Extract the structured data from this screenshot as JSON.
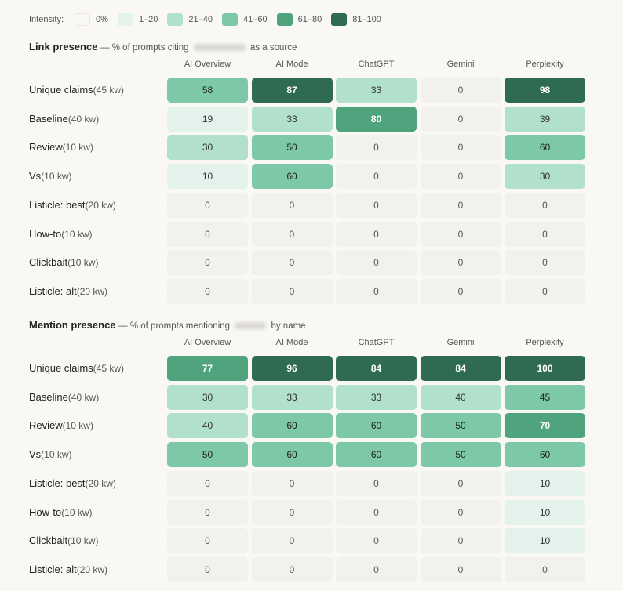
{
  "legend": {
    "title": "Intensity:",
    "items": [
      {
        "label": "0%",
        "color": "#f9f8f4"
      },
      {
        "label": "1–20",
        "color": "#e3f3ec"
      },
      {
        "label": "21–40",
        "color": "#b1e0cc"
      },
      {
        "label": "41–60",
        "color": "#7cc8a7"
      },
      {
        "label": "61–80",
        "color": "#4fa47d"
      },
      {
        "label": "81–100",
        "color": "#2f6b52"
      }
    ]
  },
  "chart_data": [
    {
      "type": "heatmap",
      "title": "Link presence",
      "subtitle_prefix": "— % of prompts citing",
      "subtitle_suffix": "as a source",
      "columns": [
        "AI Overview",
        "AI Mode",
        "ChatGPT",
        "Gemini",
        "Perplexity"
      ],
      "rows": [
        {
          "label": "Unique claims",
          "kw": "(45 kw)",
          "values": [
            58,
            87,
            33,
            0,
            98
          ]
        },
        {
          "label": "Baseline",
          "kw": "(40 kw)",
          "values": [
            19,
            33,
            80,
            0,
            39
          ]
        },
        {
          "label": "Review",
          "kw": "(10 kw)",
          "values": [
            30,
            50,
            0,
            0,
            60
          ]
        },
        {
          "label": "Vs",
          "kw": "(10 kw)",
          "values": [
            10,
            60,
            0,
            0,
            30
          ]
        },
        {
          "label": "Listicle: best",
          "kw": "(20 kw)",
          "values": [
            0,
            0,
            0,
            0,
            0
          ]
        },
        {
          "label": "How-to",
          "kw": "(10 kw)",
          "values": [
            0,
            0,
            0,
            0,
            0
          ]
        },
        {
          "label": "Clickbait",
          "kw": "(10 kw)",
          "values": [
            0,
            0,
            0,
            0,
            0
          ]
        },
        {
          "label": "Listicle: alt",
          "kw": "(20 kw)",
          "values": [
            0,
            0,
            0,
            0,
            0
          ]
        }
      ]
    },
    {
      "type": "heatmap",
      "title": "Mention presence",
      "subtitle_prefix": "— % of prompts mentioning",
      "subtitle_suffix": "by name",
      "columns": [
        "AI Overview",
        "AI Mode",
        "ChatGPT",
        "Gemini",
        "Perplexity"
      ],
      "rows": [
        {
          "label": "Unique claims",
          "kw": "(45 kw)",
          "values": [
            77,
            96,
            84,
            84,
            100
          ]
        },
        {
          "label": "Baseline",
          "kw": "(40 kw)",
          "values": [
            30,
            33,
            33,
            40,
            45
          ]
        },
        {
          "label": "Review",
          "kw": "(10 kw)",
          "values": [
            40,
            60,
            60,
            50,
            70
          ]
        },
        {
          "label": "Vs",
          "kw": "(10 kw)",
          "values": [
            50,
            60,
            60,
            50,
            60
          ]
        },
        {
          "label": "Listicle: best",
          "kw": "(20 kw)",
          "values": [
            0,
            0,
            0,
            0,
            10
          ]
        },
        {
          "label": "How-to",
          "kw": "(10 kw)",
          "values": [
            0,
            0,
            0,
            0,
            10
          ]
        },
        {
          "label": "Clickbait",
          "kw": "(10 kw)",
          "values": [
            0,
            0,
            0,
            0,
            10
          ]
        },
        {
          "label": "Listicle: alt",
          "kw": "(20 kw)",
          "values": [
            0,
            0,
            0,
            0,
            0
          ]
        }
      ]
    }
  ]
}
